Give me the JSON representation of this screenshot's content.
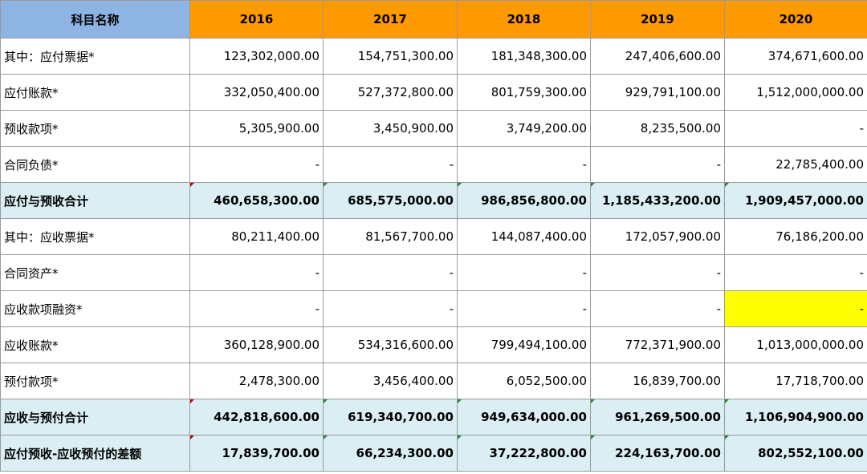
{
  "table": {
    "header": {
      "name_col": "科目名称",
      "years": [
        "2016",
        "2017",
        "2018",
        "2019",
        "2020"
      ]
    },
    "rows": [
      {
        "label": "其中：应付票据*",
        "values": [
          "123,302,000.00",
          "154,751,300.00",
          "181,348,300.00",
          "247,406,600.00",
          "374,671,600.00"
        ]
      },
      {
        "label": "应付账款*",
        "values": [
          "332,050,400.00",
          "527,372,800.00",
          "801,759,300.00",
          "929,791,100.00",
          "1,512,000,000.00"
        ]
      },
      {
        "label": "预收款项*",
        "values": [
          "5,305,900.00",
          "3,450,900.00",
          "3,749,200.00",
          "8,235,500.00",
          "-"
        ]
      },
      {
        "label": "合同负债*",
        "values": [
          "-",
          "-",
          "-",
          "-",
          "22,785,400.00"
        ]
      },
      {
        "label": "应付与预收合计",
        "values": [
          "460,658,300.00",
          "685,575,000.00",
          "986,856,800.00",
          "1,185,433,200.00",
          "1,909,457,000.00"
        ]
      },
      {
        "label": "其中：应收票据*",
        "values": [
          "80,211,400.00",
          "81,567,700.00",
          "144,087,400.00",
          "172,057,900.00",
          "76,186,200.00"
        ]
      },
      {
        "label": "合同资产*",
        "values": [
          "-",
          "-",
          "-",
          "-",
          "-"
        ]
      },
      {
        "label": "应收款项融资*",
        "values": [
          "-",
          "-",
          "-",
          "-",
          "-"
        ]
      },
      {
        "label": "应收账款*",
        "values": [
          "360,128,900.00",
          "534,316,600.00",
          "799,494,100.00",
          "772,371,900.00",
          "1,013,000,000.00"
        ]
      },
      {
        "label": "预付款项*",
        "values": [
          "2,478,300.00",
          "3,456,400.00",
          "6,052,500.00",
          "16,839,700.00",
          "17,718,700.00"
        ]
      },
      {
        "label": "应收与预付合计",
        "values": [
          "442,818,600.00",
          "619,340,700.00",
          "949,634,000.00",
          "961,269,500.00",
          "1,106,904,900.00"
        ]
      },
      {
        "label": "应付预收-应收预付的差额",
        "values": [
          "17,839,700.00",
          "66,234,300.00",
          "37,222,800.00",
          "224,163,700.00",
          "802,552,100.00"
        ]
      }
    ]
  },
  "colors": {
    "name_header_bg": "#8db4e2",
    "year_header_bg": "#ff9900",
    "total_row_bg": "#daeef3",
    "highlight_cell_bg": "#ffff00",
    "border": "#9a9a9a"
  }
}
